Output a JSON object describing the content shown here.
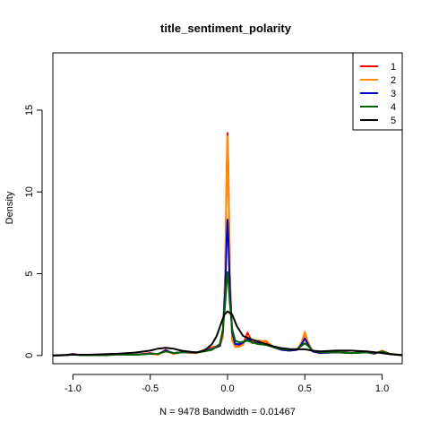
{
  "chart_data": {
    "type": "line",
    "title": "title_sentiment_polarity",
    "xlabel": "N = 9478   Bandwidth = 0.01467",
    "ylabel": "Density",
    "xlim": [
      -1.13,
      1.13
    ],
    "ylim": [
      -0.5,
      18.5
    ],
    "x_ticks": [
      -1.0,
      -0.5,
      0.0,
      0.5,
      1.0
    ],
    "x_tick_labels": [
      "-1.0",
      "-0.5",
      "0.0",
      "0.5",
      "1.0"
    ],
    "y_ticks": [
      0,
      5,
      10,
      15
    ],
    "y_tick_labels": [
      "0",
      "5",
      "10",
      "15"
    ],
    "legend_position": "top-right",
    "series": [
      {
        "name": "1",
        "color": "#ff0000",
        "points": [
          [
            -1.13,
            0
          ],
          [
            -1.05,
            0.02
          ],
          [
            -1.0,
            0.1
          ],
          [
            -0.95,
            0.02
          ],
          [
            -0.8,
            0.02
          ],
          [
            -0.7,
            0.08
          ],
          [
            -0.6,
            0.05
          ],
          [
            -0.5,
            0.15
          ],
          [
            -0.45,
            0.05
          ],
          [
            -0.4,
            0.35
          ],
          [
            -0.35,
            0.1
          ],
          [
            -0.3,
            0.2
          ],
          [
            -0.2,
            0.15
          ],
          [
            -0.15,
            0.35
          ],
          [
            -0.1,
            0.5
          ],
          [
            -0.05,
            0.6
          ],
          [
            -0.03,
            1.2
          ],
          [
            -0.015,
            5
          ],
          [
            -0.005,
            11.5
          ],
          [
            0,
            13.6
          ],
          [
            0.005,
            11.5
          ],
          [
            0.015,
            5
          ],
          [
            0.03,
            1.0
          ],
          [
            0.05,
            0.55
          ],
          [
            0.08,
            0.6
          ],
          [
            0.1,
            0.7
          ],
          [
            0.13,
            1.4
          ],
          [
            0.16,
            0.8
          ],
          [
            0.2,
            0.9
          ],
          [
            0.25,
            0.85
          ],
          [
            0.3,
            0.5
          ],
          [
            0.35,
            0.35
          ],
          [
            0.4,
            0.3
          ],
          [
            0.45,
            0.35
          ],
          [
            0.48,
            0.8
          ],
          [
            0.5,
            1.4
          ],
          [
            0.52,
            0.8
          ],
          [
            0.55,
            0.25
          ],
          [
            0.6,
            0.15
          ],
          [
            0.7,
            0.2
          ],
          [
            0.8,
            0.15
          ],
          [
            0.9,
            0.2
          ],
          [
            0.95,
            0.1
          ],
          [
            1.0,
            0.3
          ],
          [
            1.05,
            0.1
          ],
          [
            1.13,
            0.02
          ]
        ]
      },
      {
        "name": "2",
        "color": "#ff8c00",
        "points": [
          [
            -1.13,
            0
          ],
          [
            -1.05,
            0.02
          ],
          [
            -1.0,
            0.08
          ],
          [
            -0.95,
            0.02
          ],
          [
            -0.8,
            0.02
          ],
          [
            -0.7,
            0.1
          ],
          [
            -0.6,
            0.05
          ],
          [
            -0.5,
            0.12
          ],
          [
            -0.45,
            0.05
          ],
          [
            -0.4,
            0.3
          ],
          [
            -0.35,
            0.1
          ],
          [
            -0.3,
            0.2
          ],
          [
            -0.2,
            0.15
          ],
          [
            -0.15,
            0.3
          ],
          [
            -0.1,
            0.45
          ],
          [
            -0.05,
            0.55
          ],
          [
            -0.03,
            1.1
          ],
          [
            -0.015,
            4.8
          ],
          [
            -0.005,
            11.2
          ],
          [
            0,
            13.4
          ],
          [
            0.005,
            11.2
          ],
          [
            0.015,
            4.8
          ],
          [
            0.03,
            0.9
          ],
          [
            0.05,
            0.5
          ],
          [
            0.08,
            0.55
          ],
          [
            0.1,
            0.65
          ],
          [
            0.13,
            1.2
          ],
          [
            0.16,
            0.75
          ],
          [
            0.2,
            0.85
          ],
          [
            0.25,
            0.9
          ],
          [
            0.3,
            0.5
          ],
          [
            0.35,
            0.35
          ],
          [
            0.4,
            0.3
          ],
          [
            0.45,
            0.35
          ],
          [
            0.48,
            0.85
          ],
          [
            0.5,
            1.45
          ],
          [
            0.52,
            0.85
          ],
          [
            0.55,
            0.25
          ],
          [
            0.6,
            0.15
          ],
          [
            0.7,
            0.2
          ],
          [
            0.8,
            0.15
          ],
          [
            0.9,
            0.2
          ],
          [
            0.95,
            0.1
          ],
          [
            1.0,
            0.3
          ],
          [
            1.05,
            0.1
          ],
          [
            1.13,
            0.02
          ]
        ]
      },
      {
        "name": "3",
        "color": "#0000cd",
        "points": [
          [
            -1.13,
            0
          ],
          [
            -1.05,
            0.02
          ],
          [
            -1.0,
            0.08
          ],
          [
            -0.95,
            0.02
          ],
          [
            -0.8,
            0.02
          ],
          [
            -0.7,
            0.08
          ],
          [
            -0.6,
            0.05
          ],
          [
            -0.5,
            0.12
          ],
          [
            -0.45,
            0.1
          ],
          [
            -0.4,
            0.3
          ],
          [
            -0.35,
            0.15
          ],
          [
            -0.3,
            0.2
          ],
          [
            -0.2,
            0.2
          ],
          [
            -0.15,
            0.3
          ],
          [
            -0.1,
            0.4
          ],
          [
            -0.05,
            0.6
          ],
          [
            -0.03,
            1.5
          ],
          [
            -0.015,
            4.0
          ],
          [
            -0.005,
            7.2
          ],
          [
            0,
            8.3
          ],
          [
            0.005,
            7.2
          ],
          [
            0.015,
            4.0
          ],
          [
            0.03,
            1.4
          ],
          [
            0.05,
            0.7
          ],
          [
            0.08,
            0.7
          ],
          [
            0.1,
            0.8
          ],
          [
            0.13,
            1.0
          ],
          [
            0.16,
            0.8
          ],
          [
            0.2,
            0.75
          ],
          [
            0.25,
            0.7
          ],
          [
            0.3,
            0.5
          ],
          [
            0.35,
            0.35
          ],
          [
            0.4,
            0.3
          ],
          [
            0.45,
            0.35
          ],
          [
            0.48,
            0.7
          ],
          [
            0.5,
            1.05
          ],
          [
            0.52,
            0.7
          ],
          [
            0.55,
            0.25
          ],
          [
            0.6,
            0.15
          ],
          [
            0.7,
            0.2
          ],
          [
            0.8,
            0.15
          ],
          [
            0.9,
            0.2
          ],
          [
            0.95,
            0.12
          ],
          [
            1.0,
            0.25
          ],
          [
            1.05,
            0.1
          ],
          [
            1.13,
            0.02
          ]
        ]
      },
      {
        "name": "4",
        "color": "#006400",
        "points": [
          [
            -1.13,
            0
          ],
          [
            -1.05,
            0.02
          ],
          [
            -1.0,
            0.06
          ],
          [
            -0.95,
            0.02
          ],
          [
            -0.8,
            0.02
          ],
          [
            -0.7,
            0.06
          ],
          [
            -0.6,
            0.05
          ],
          [
            -0.5,
            0.1
          ],
          [
            -0.45,
            0.1
          ],
          [
            -0.4,
            0.25
          ],
          [
            -0.35,
            0.15
          ],
          [
            -0.3,
            0.2
          ],
          [
            -0.2,
            0.2
          ],
          [
            -0.15,
            0.25
          ],
          [
            -0.1,
            0.35
          ],
          [
            -0.05,
            0.7
          ],
          [
            -0.03,
            1.6
          ],
          [
            -0.015,
            3.2
          ],
          [
            -0.005,
            4.6
          ],
          [
            0,
            5.1
          ],
          [
            0.005,
            4.6
          ],
          [
            0.015,
            3.2
          ],
          [
            0.03,
            1.6
          ],
          [
            0.05,
            0.9
          ],
          [
            0.08,
            0.8
          ],
          [
            0.1,
            0.85
          ],
          [
            0.13,
            0.9
          ],
          [
            0.16,
            0.8
          ],
          [
            0.2,
            0.7
          ],
          [
            0.25,
            0.65
          ],
          [
            0.3,
            0.5
          ],
          [
            0.35,
            0.4
          ],
          [
            0.4,
            0.35
          ],
          [
            0.45,
            0.4
          ],
          [
            0.48,
            0.6
          ],
          [
            0.5,
            0.75
          ],
          [
            0.52,
            0.6
          ],
          [
            0.55,
            0.3
          ],
          [
            0.6,
            0.2
          ],
          [
            0.7,
            0.2
          ],
          [
            0.8,
            0.15
          ],
          [
            0.9,
            0.2
          ],
          [
            0.95,
            0.15
          ],
          [
            1.0,
            0.25
          ],
          [
            1.05,
            0.1
          ],
          [
            1.13,
            0.02
          ]
        ]
      },
      {
        "name": "5",
        "color": "#000000",
        "points": [
          [
            -1.13,
            0
          ],
          [
            -1.1,
            0.02
          ],
          [
            -1.0,
            0.05
          ],
          [
            -0.9,
            0.05
          ],
          [
            -0.8,
            0.08
          ],
          [
            -0.7,
            0.12
          ],
          [
            -0.6,
            0.18
          ],
          [
            -0.5,
            0.3
          ],
          [
            -0.45,
            0.42
          ],
          [
            -0.4,
            0.47
          ],
          [
            -0.35,
            0.42
          ],
          [
            -0.3,
            0.3
          ],
          [
            -0.2,
            0.18
          ],
          [
            -0.15,
            0.3
          ],
          [
            -0.1,
            0.7
          ],
          [
            -0.07,
            1.2
          ],
          [
            -0.04,
            2.0
          ],
          [
            -0.02,
            2.5
          ],
          [
            0,
            2.7
          ],
          [
            0.03,
            2.5
          ],
          [
            0.06,
            1.8
          ],
          [
            0.1,
            1.2
          ],
          [
            0.15,
            1.0
          ],
          [
            0.2,
            0.85
          ],
          [
            0.25,
            0.7
          ],
          [
            0.3,
            0.55
          ],
          [
            0.35,
            0.45
          ],
          [
            0.4,
            0.4
          ],
          [
            0.45,
            0.38
          ],
          [
            0.5,
            0.38
          ],
          [
            0.55,
            0.3
          ],
          [
            0.6,
            0.25
          ],
          [
            0.7,
            0.3
          ],
          [
            0.8,
            0.3
          ],
          [
            0.9,
            0.25
          ],
          [
            1.0,
            0.15
          ],
          [
            1.05,
            0.08
          ],
          [
            1.13,
            0.02
          ]
        ]
      }
    ]
  }
}
